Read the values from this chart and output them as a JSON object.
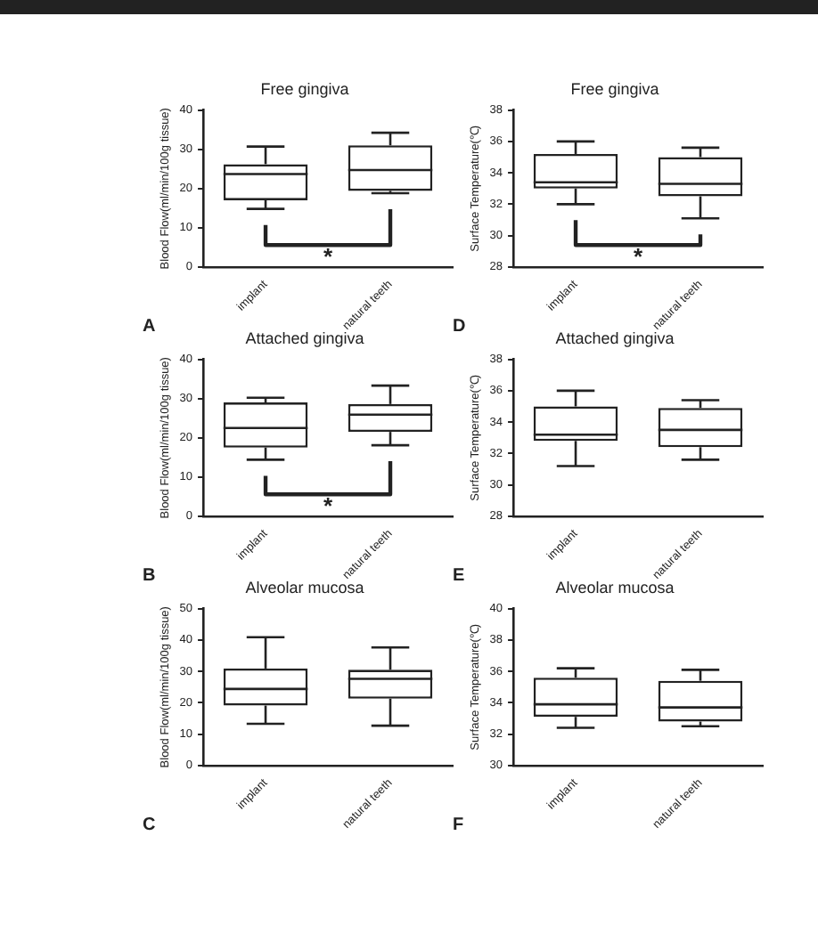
{
  "chart_data": [
    {
      "type": "box",
      "title": "Free gingiva",
      "ylabel": "Blood Flow(ml/min/100g tissue)",
      "categories": [
        "implant",
        "natural teeth"
      ],
      "ylim": [
        0,
        40
      ],
      "yticks": [
        0,
        10,
        20,
        30,
        40
      ],
      "grid": false,
      "legend": false,
      "annotations": [
        "*",
        "A"
      ],
      "boxes": [
        {
          "low": 14.8,
          "q1": 17,
          "median": 23.7,
          "q3": 26.2,
          "high": 30.7
        },
        {
          "low": 18.8,
          "q1": 19.4,
          "median": 24.7,
          "q3": 31,
          "high": 34.2
        }
      ]
    },
    {
      "type": "box",
      "title": "Free gingiva",
      "ylabel": "Surface Temperature(℃)",
      "categories": [
        "implant",
        "natural teeth"
      ],
      "ylim": [
        28,
        38
      ],
      "yticks": [
        28,
        30,
        32,
        34,
        36,
        38
      ],
      "grid": false,
      "legend": false,
      "annotations": [
        "*",
        "D"
      ],
      "boxes": [
        {
          "low": 32.0,
          "q1": 33.0,
          "median": 33.4,
          "q3": 35.2,
          "high": 36.0
        },
        {
          "low": 31.1,
          "q1": 32.5,
          "median": 33.3,
          "q3": 35.0,
          "high": 35.6
        }
      ]
    },
    {
      "type": "box",
      "title": "Attached gingiva",
      "ylabel": "Blood Flow(ml/min/100g tissue)",
      "categories": [
        "implant",
        "natural teeth"
      ],
      "ylim": [
        0,
        40
      ],
      "yticks": [
        0,
        10,
        20,
        30,
        40
      ],
      "grid": false,
      "legend": false,
      "annotations": [
        "*",
        "B"
      ],
      "boxes": [
        {
          "low": 14.4,
          "q1": 17.5,
          "median": 22.5,
          "q3": 29,
          "high": 30.2
        },
        {
          "low": 18.1,
          "q1": 21.5,
          "median": 25.9,
          "q3": 28.6,
          "high": 33.3
        }
      ]
    },
    {
      "type": "box",
      "title": "Attached gingiva",
      "ylabel": "Surface Temperature(℃)",
      "categories": [
        "implant",
        "natural teeth"
      ],
      "ylim": [
        28,
        38
      ],
      "yticks": [
        28,
        30,
        32,
        34,
        36,
        38
      ],
      "grid": false,
      "legend": false,
      "annotations": [
        "E"
      ],
      "boxes": [
        {
          "low": 31.2,
          "q1": 32.8,
          "median": 33.2,
          "q3": 35.0,
          "high": 36.0
        },
        {
          "low": 31.6,
          "q1": 32.4,
          "median": 33.5,
          "q3": 34.9,
          "high": 35.4
        }
      ]
    },
    {
      "type": "box",
      "title": "Alveolar mucosa",
      "ylabel": "Blood Flow(ml/min/100g tissue)",
      "categories": [
        "implant",
        "natural teeth"
      ],
      "ylim": [
        0,
        50
      ],
      "yticks": [
        0,
        10,
        20,
        30,
        40,
        50
      ],
      "grid": false,
      "legend": false,
      "annotations": [
        "C"
      ],
      "boxes": [
        {
          "low": 13.3,
          "q1": 19.1,
          "median": 24.4,
          "q3": 30.9,
          "high": 40.9
        },
        {
          "low": 12.7,
          "q1": 21.3,
          "median": 27.6,
          "q3": 30.5,
          "high": 37.6
        }
      ]
    },
    {
      "type": "box",
      "title": "Alveolar mucosa",
      "ylabel": "Surface Temperature(℃)",
      "categories": [
        "implant",
        "natural teeth"
      ],
      "ylim": [
        30,
        40
      ],
      "yticks": [
        30,
        32,
        34,
        36,
        38,
        40
      ],
      "grid": false,
      "legend": false,
      "annotations": [
        "F"
      ],
      "boxes": [
        {
          "low": 32.4,
          "q1": 33.1,
          "median": 33.9,
          "q3": 35.6,
          "high": 36.2
        },
        {
          "low": 32.5,
          "q1": 32.8,
          "median": 33.7,
          "q3": 35.4,
          "high": 36.1
        }
      ]
    }
  ]
}
